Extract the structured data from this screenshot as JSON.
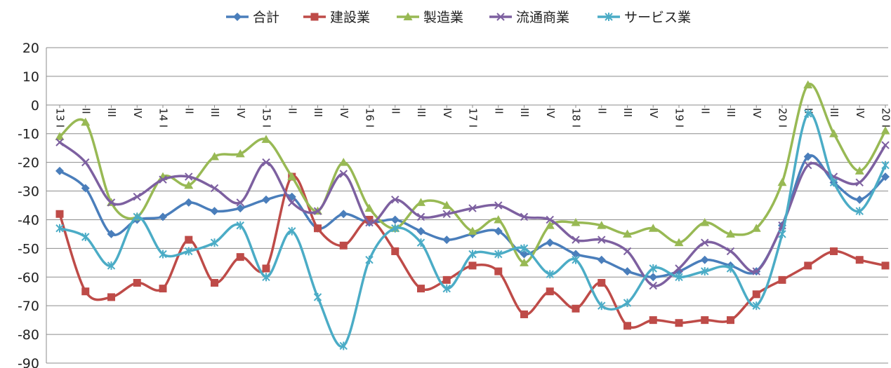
{
  "chart_data": {
    "type": "line",
    "title": "",
    "xlabel": "",
    "ylabel": "",
    "ylim": [
      -90,
      20
    ],
    "yticks": [
      20,
      10,
      0,
      -10,
      -20,
      -30,
      -40,
      -50,
      -60,
      -70,
      -80,
      -90
    ],
    "grid": true,
    "legend_position": "top",
    "categories": [
      "13 I",
      "II",
      "III",
      "IV",
      "14 I",
      "II",
      "III",
      "IV",
      "15 I",
      "II",
      "III",
      "IV",
      "16 I",
      "II",
      "III",
      "IV",
      "17 I",
      "II",
      "III",
      "IV",
      "18 I",
      "II",
      "III",
      "IV",
      "19 I",
      "II",
      "III",
      "IV",
      "20 I",
      "II",
      "III",
      "IV",
      "20 I"
    ],
    "series": [
      {
        "name": "合計",
        "color": "#4a7ebb",
        "marker": "diamond",
        "values": [
          -23,
          -29,
          -45,
          -40,
          -39,
          -34,
          -37,
          -36,
          -33,
          -32,
          -43,
          -38,
          -41,
          -40,
          -44,
          -47,
          -45,
          -44,
          -52,
          -48,
          -52,
          -54,
          -58,
          -60,
          -58,
          -54,
          -56,
          -58,
          -42,
          -18,
          -27,
          -33,
          -25
        ]
      },
      {
        "name": "建設業",
        "color": "#be4b48",
        "marker": "square",
        "values": [
          -38,
          -65,
          -67,
          -62,
          -64,
          -47,
          -62,
          -53,
          -57,
          -25,
          -43,
          -49,
          -40,
          -51,
          -64,
          -61,
          -56,
          -58,
          -73,
          -65,
          -71,
          -62,
          -77,
          -75,
          -76,
          -75,
          -75,
          -66,
          -61,
          -56,
          -51,
          -54,
          -56
        ]
      },
      {
        "name": "製造業",
        "color": "#98b954",
        "marker": "triangle",
        "values": [
          -11,
          -6,
          -34,
          -39,
          -25,
          -28,
          -18,
          -17,
          -12,
          -25,
          -37,
          -20,
          -36,
          -43,
          -34,
          -35,
          -44,
          -40,
          -55,
          -42,
          -41,
          -42,
          -45,
          -43,
          -48,
          -41,
          -45,
          -43,
          -27,
          7,
          -10,
          -23,
          -9
        ]
      },
      {
        "name": "流通商業",
        "color": "#7d60a0",
        "marker": "x",
        "values": [
          -13,
          -20,
          -34,
          -32,
          -26,
          -25,
          -29,
          -34,
          -20,
          -34,
          -37,
          -24,
          -41,
          -33,
          -39,
          -38,
          -36,
          -35,
          -39,
          -40,
          -47,
          -47,
          -51,
          -63,
          -57,
          -48,
          -51,
          -58,
          -42,
          -21,
          -25,
          -27,
          -14
        ]
      },
      {
        "name": "サービス業",
        "color": "#4bacc6",
        "marker": "star",
        "values": [
          -43,
          -46,
          -56,
          -39,
          -52,
          -51,
          -48,
          -42,
          -60,
          -44,
          -67,
          -84,
          -54,
          -43,
          -48,
          -64,
          -52,
          -52,
          -50,
          -59,
          -54,
          -70,
          -69,
          -57,
          -60,
          -58,
          -57,
          -70,
          -45,
          -3,
          -27,
          -37,
          -21
        ]
      }
    ]
  }
}
